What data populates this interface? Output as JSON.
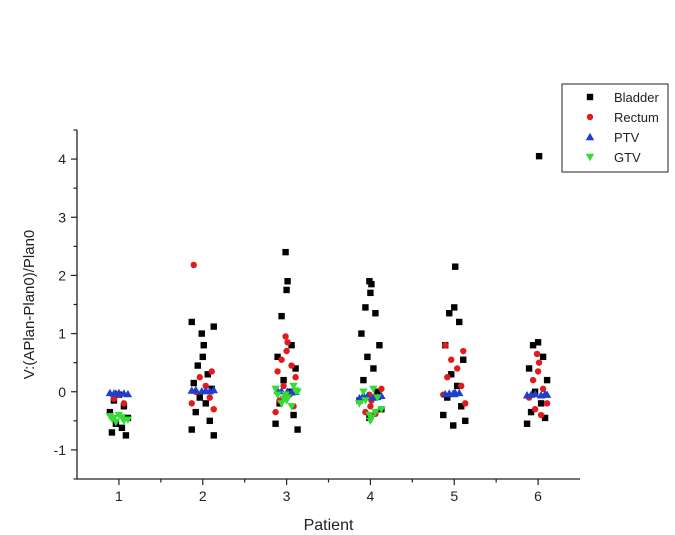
{
  "chart_data": {
    "type": "scatter",
    "title": "",
    "xlabel": "Patient",
    "ylabel": "V:(APlan-Plan0)/Plan0",
    "categories": [
      "1",
      "2",
      "3",
      "4",
      "5",
      "6"
    ],
    "xlim": [
      0.5,
      6.5
    ],
    "ylim": [
      -1.5,
      4.5
    ],
    "yticks": [
      -1,
      0,
      1,
      2,
      3,
      4
    ],
    "grid": false,
    "legend_position": "top-right",
    "series": [
      {
        "name": "Bladder",
        "marker": "square",
        "color": "#000000",
        "points": [
          [
            1,
            -0.05
          ],
          [
            1,
            -0.15
          ],
          [
            1,
            -0.25
          ],
          [
            1,
            -0.35
          ],
          [
            1,
            -0.45
          ],
          [
            1,
            -0.55
          ],
          [
            1,
            -0.62
          ],
          [
            1,
            -0.7
          ],
          [
            1,
            -0.75
          ],
          [
            2,
            1.2
          ],
          [
            2,
            1.12
          ],
          [
            2,
            1.0
          ],
          [
            2,
            0.8
          ],
          [
            2,
            0.6
          ],
          [
            2,
            0.45
          ],
          [
            2,
            0.3
          ],
          [
            2,
            0.15
          ],
          [
            2,
            0.05
          ],
          [
            2,
            -0.1
          ],
          [
            2,
            -0.2
          ],
          [
            2,
            -0.35
          ],
          [
            2,
            -0.5
          ],
          [
            2,
            -0.65
          ],
          [
            2,
            -0.75
          ],
          [
            3,
            2.4
          ],
          [
            3,
            1.9
          ],
          [
            3,
            1.75
          ],
          [
            3,
            1.3
          ],
          [
            3,
            0.8
          ],
          [
            3,
            0.6
          ],
          [
            3,
            0.4
          ],
          [
            3,
            0.2
          ],
          [
            3,
            0.0
          ],
          [
            3,
            -0.2
          ],
          [
            3,
            -0.4
          ],
          [
            3,
            -0.55
          ],
          [
            3,
            -0.65
          ],
          [
            4,
            1.9
          ],
          [
            4,
            1.85
          ],
          [
            4,
            1.7
          ],
          [
            4,
            1.45
          ],
          [
            4,
            1.35
          ],
          [
            4,
            1.0
          ],
          [
            4,
            0.8
          ],
          [
            4,
            0.6
          ],
          [
            4,
            0.4
          ],
          [
            4,
            0.2
          ],
          [
            4,
            0.0
          ],
          [
            4,
            -0.15
          ],
          [
            4,
            -0.3
          ],
          [
            4,
            -0.45
          ],
          [
            5,
            2.15
          ],
          [
            5,
            1.45
          ],
          [
            5,
            1.35
          ],
          [
            5,
            1.2
          ],
          [
            5,
            0.8
          ],
          [
            5,
            0.55
          ],
          [
            5,
            0.3
          ],
          [
            5,
            0.1
          ],
          [
            5,
            -0.1
          ],
          [
            5,
            -0.25
          ],
          [
            5,
            -0.4
          ],
          [
            5,
            -0.5
          ],
          [
            5,
            -0.58
          ],
          [
            6,
            4.05
          ],
          [
            6,
            0.85
          ],
          [
            6,
            0.8
          ],
          [
            6,
            0.6
          ],
          [
            6,
            0.4
          ],
          [
            6,
            0.2
          ],
          [
            6,
            0.0
          ],
          [
            6,
            -0.2
          ],
          [
            6,
            -0.35
          ],
          [
            6,
            -0.45
          ],
          [
            6,
            -0.55
          ]
        ]
      },
      {
        "name": "Rectum",
        "marker": "circle",
        "color": "#e31a1c",
        "points": [
          [
            1,
            -0.05
          ],
          [
            1,
            -0.12
          ],
          [
            1,
            -0.2
          ],
          [
            2,
            2.18
          ],
          [
            2,
            0.35
          ],
          [
            2,
            0.25
          ],
          [
            2,
            0.1
          ],
          [
            2,
            0.0
          ],
          [
            2,
            -0.1
          ],
          [
            2,
            -0.2
          ],
          [
            2,
            -0.3
          ],
          [
            3,
            0.95
          ],
          [
            3,
            0.85
          ],
          [
            3,
            0.7
          ],
          [
            3,
            0.55
          ],
          [
            3,
            0.45
          ],
          [
            3,
            0.35
          ],
          [
            3,
            0.25
          ],
          [
            3,
            0.1
          ],
          [
            3,
            -0.05
          ],
          [
            3,
            -0.15
          ],
          [
            3,
            -0.25
          ],
          [
            3,
            -0.35
          ],
          [
            4,
            0.05
          ],
          [
            4,
            -0.05
          ],
          [
            4,
            -0.15
          ],
          [
            4,
            -0.25
          ],
          [
            4,
            -0.35
          ],
          [
            4,
            -0.38
          ],
          [
            5,
            0.8
          ],
          [
            5,
            0.7
          ],
          [
            5,
            0.55
          ],
          [
            5,
            0.4
          ],
          [
            5,
            0.25
          ],
          [
            5,
            0.1
          ],
          [
            5,
            -0.05
          ],
          [
            5,
            -0.2
          ],
          [
            6,
            0.65
          ],
          [
            6,
            0.5
          ],
          [
            6,
            0.35
          ],
          [
            6,
            0.2
          ],
          [
            6,
            0.05
          ],
          [
            6,
            -0.1
          ],
          [
            6,
            -0.2
          ],
          [
            6,
            -0.3
          ],
          [
            6,
            -0.4
          ]
        ]
      },
      {
        "name": "PTV",
        "marker": "triangle-up",
        "color": "#1f3fcc",
        "points": [
          [
            1,
            -0.02
          ],
          [
            1,
            -0.03
          ],
          [
            1,
            -0.03
          ],
          [
            1,
            -0.02
          ],
          [
            1,
            -0.04
          ],
          [
            1,
            -0.03
          ],
          [
            2,
            0.02
          ],
          [
            2,
            0.03
          ],
          [
            2,
            0.01
          ],
          [
            2,
            0.02
          ],
          [
            2,
            0.03
          ],
          [
            2,
            0.01
          ],
          [
            3,
            0.0
          ],
          [
            3,
            -0.02
          ],
          [
            3,
            0.01
          ],
          [
            3,
            -0.01
          ],
          [
            3,
            0.02
          ],
          [
            3,
            0.0
          ],
          [
            4,
            -0.08
          ],
          [
            4,
            -0.1
          ],
          [
            4,
            -0.06
          ],
          [
            4,
            -0.09
          ],
          [
            4,
            -0.11
          ],
          [
            4,
            -0.07
          ],
          [
            5,
            -0.03
          ],
          [
            5,
            -0.02
          ],
          [
            5,
            -0.04
          ],
          [
            5,
            -0.03
          ],
          [
            5,
            -0.02
          ],
          [
            5,
            -0.04
          ],
          [
            6,
            -0.05
          ],
          [
            6,
            -0.04
          ],
          [
            6,
            -0.06
          ],
          [
            6,
            -0.05
          ],
          [
            6,
            -0.04
          ],
          [
            6,
            -0.06
          ]
        ]
      },
      {
        "name": "GTV",
        "marker": "triangle-down",
        "color": "#33dd33",
        "points": [
          [
            1,
            -0.4
          ],
          [
            1,
            -0.45
          ],
          [
            1,
            -0.5
          ],
          [
            1,
            -0.42
          ],
          [
            1,
            -0.48
          ],
          [
            1,
            -0.52
          ],
          [
            1,
            -0.44
          ],
          [
            1,
            -0.46
          ],
          [
            3,
            0.1
          ],
          [
            3,
            0.05
          ],
          [
            3,
            0.0
          ],
          [
            3,
            -0.05
          ],
          [
            3,
            -0.1
          ],
          [
            3,
            -0.15
          ],
          [
            3,
            -0.2
          ],
          [
            3,
            -0.25
          ],
          [
            3,
            -0.05
          ],
          [
            3,
            0.02
          ],
          [
            3,
            -0.12
          ],
          [
            4,
            0.05
          ],
          [
            4,
            0.0
          ],
          [
            4,
            -0.1
          ],
          [
            4,
            -0.2
          ],
          [
            4,
            -0.3
          ],
          [
            4,
            -0.4
          ],
          [
            4,
            -0.45
          ],
          [
            4,
            -0.5
          ],
          [
            4,
            -0.15
          ],
          [
            4,
            -0.35
          ]
        ]
      }
    ]
  }
}
